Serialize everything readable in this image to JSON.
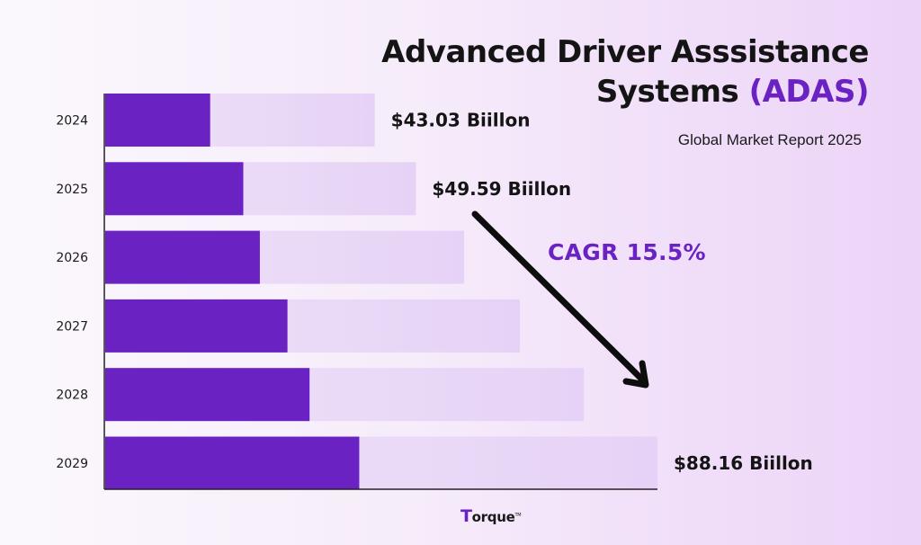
{
  "header": {
    "title_line1": "Advanced Driver Asssistance",
    "title_line2_main": "Systems ",
    "title_line2_accent": "(ADAS)",
    "subtitle": "Global Market Report 2025"
  },
  "annotation": {
    "cagr": "CAGR 15.5%"
  },
  "brand": {
    "logo_initial": "T",
    "logo_rest": "orque",
    "logo_mark": "TM"
  },
  "colors": {
    "accent": "#6a22c3",
    "bar_track_start": "#efe2f8",
    "bar_track_end": "#e6d2f6",
    "text": "#141414"
  },
  "chart_data": {
    "type": "bar",
    "orientation": "horizontal",
    "categories": [
      "2024",
      "2025",
      "2026",
      "2027",
      "2028",
      "2029"
    ],
    "labels": [
      "$43.03 Biillon",
      "$49.59 Biillon",
      "",
      "",
      "",
      "$88.16 Biillon"
    ],
    "series": [
      {
        "values": [
          43.03,
          49.59,
          57.3,
          66.2,
          76.4,
          88.16
        ]
      }
    ],
    "inner_fraction": [
      0.19,
      0.25,
      0.28,
      0.33,
      0.37,
      0.46
    ],
    "grid": false
  }
}
